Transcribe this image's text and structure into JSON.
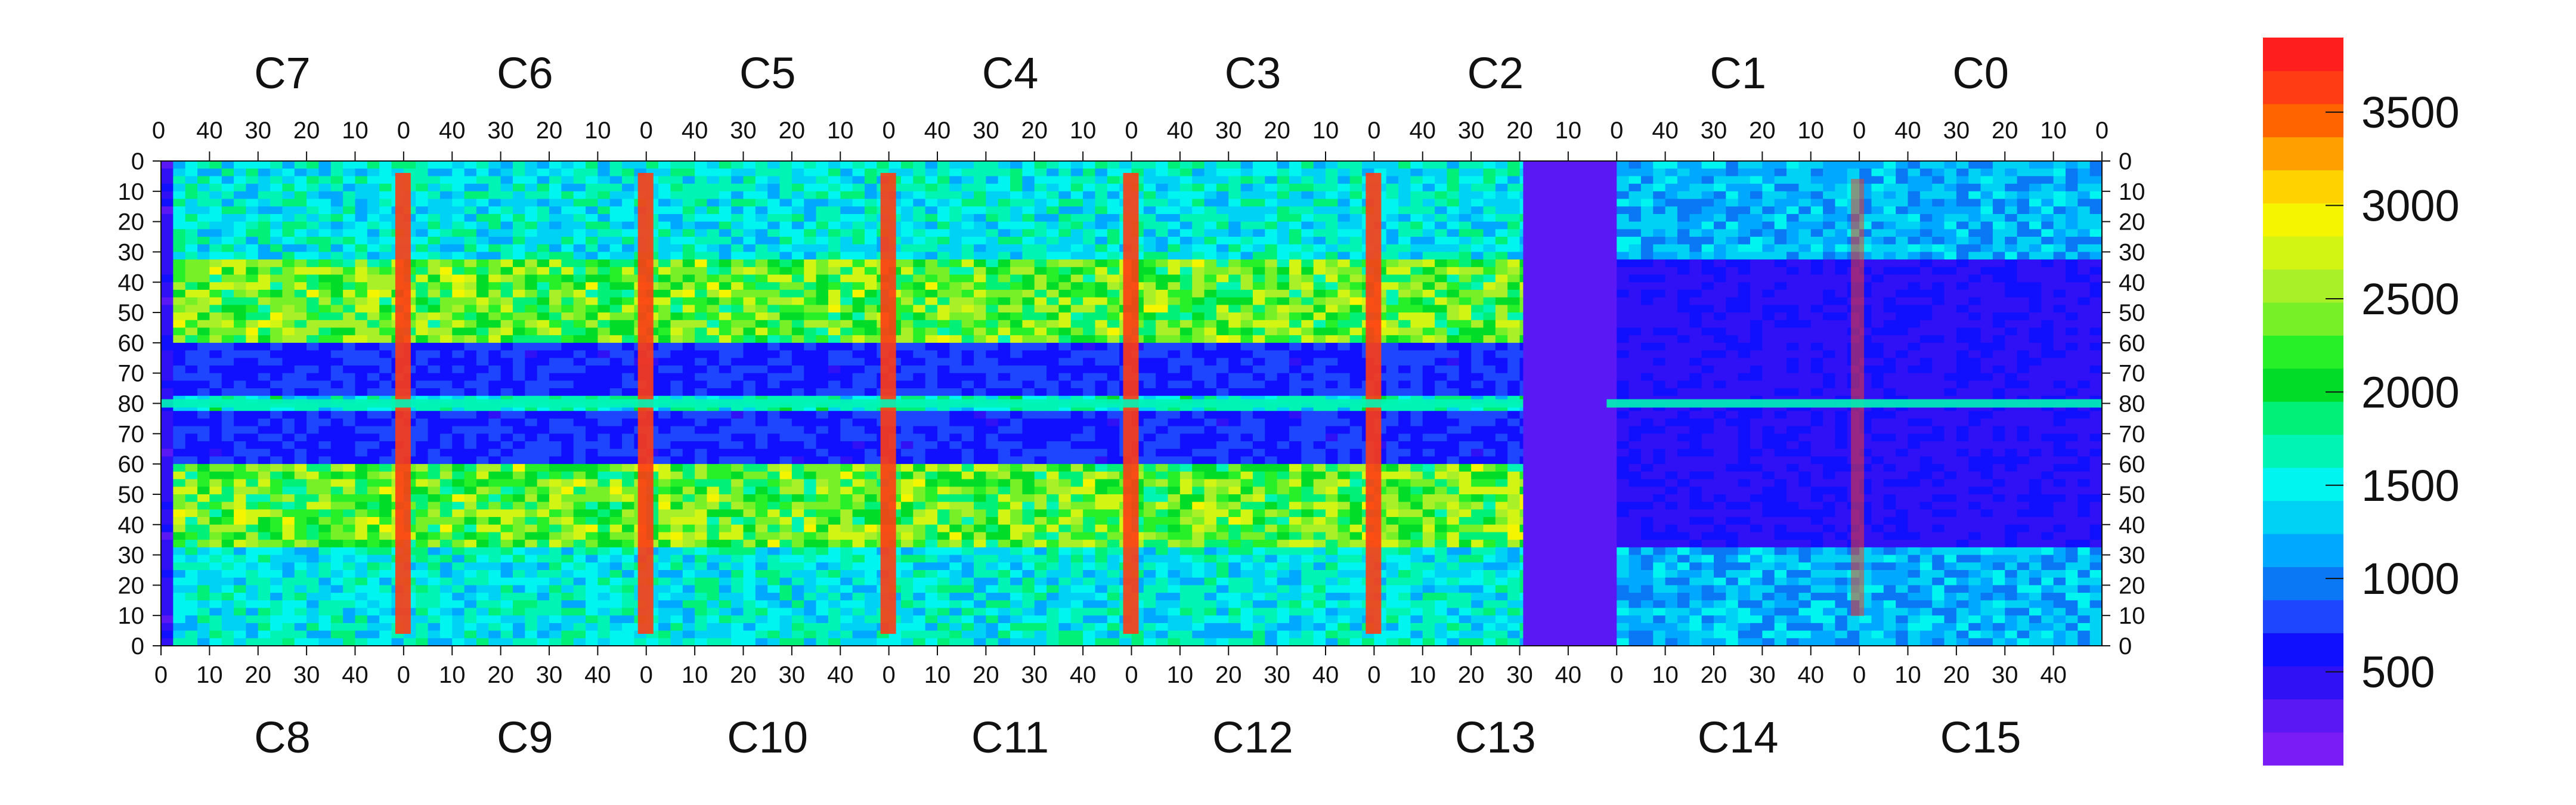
{
  "chart_data": {
    "type": "heatmap",
    "title": "",
    "xlabel": "",
    "ylabel": "",
    "top_channels": [
      "C7",
      "C6",
      "C5",
      "C4",
      "C3",
      "C2",
      "C1",
      "C0"
    ],
    "bottom_channels": [
      "C8",
      "C9",
      "C10",
      "C11",
      "C12",
      "C13",
      "C14",
      "C15"
    ],
    "top_tick_labels": [
      "40",
      "30",
      "20",
      "10",
      "0"
    ],
    "bottom_tick_labels": [
      "0",
      "10",
      "20",
      "30",
      "40"
    ],
    "top_edge_label": "0",
    "y_tick_labels": [
      "0",
      "10",
      "20",
      "30",
      "40",
      "50",
      "60",
      "70",
      "80",
      "70",
      "60",
      "50",
      "40",
      "30",
      "20",
      "10",
      "0"
    ],
    "colorbar": {
      "ticks": [
        "500",
        "1000",
        "1500",
        "2000",
        "2500",
        "3000",
        "3500"
      ],
      "tick_values": [
        500,
        1000,
        1500,
        2000,
        2500,
        3000,
        3500
      ],
      "range": [
        0,
        3900
      ],
      "colors": [
        "#7a1cf5",
        "#5a18f5",
        "#3010f5",
        "#1010ff",
        "#1e46ff",
        "#0a78f5",
        "#00a8ff",
        "#00d2f5",
        "#00f5f0",
        "#00f5b4",
        "#00f078",
        "#00dc28",
        "#28f028",
        "#78f028",
        "#aaf028",
        "#d2f514",
        "#f5f500",
        "#ffd200",
        "#ffa000",
        "#ff6400",
        "#ff3c14",
        "#ff1e1e"
      ]
    },
    "note_values": {
      "strip_level": 3700,
      "row80_level": 1600,
      "bright_band_level": 2300,
      "mid_band_level": 1500,
      "dark_band_level": 700,
      "gap_level": 250
    }
  }
}
